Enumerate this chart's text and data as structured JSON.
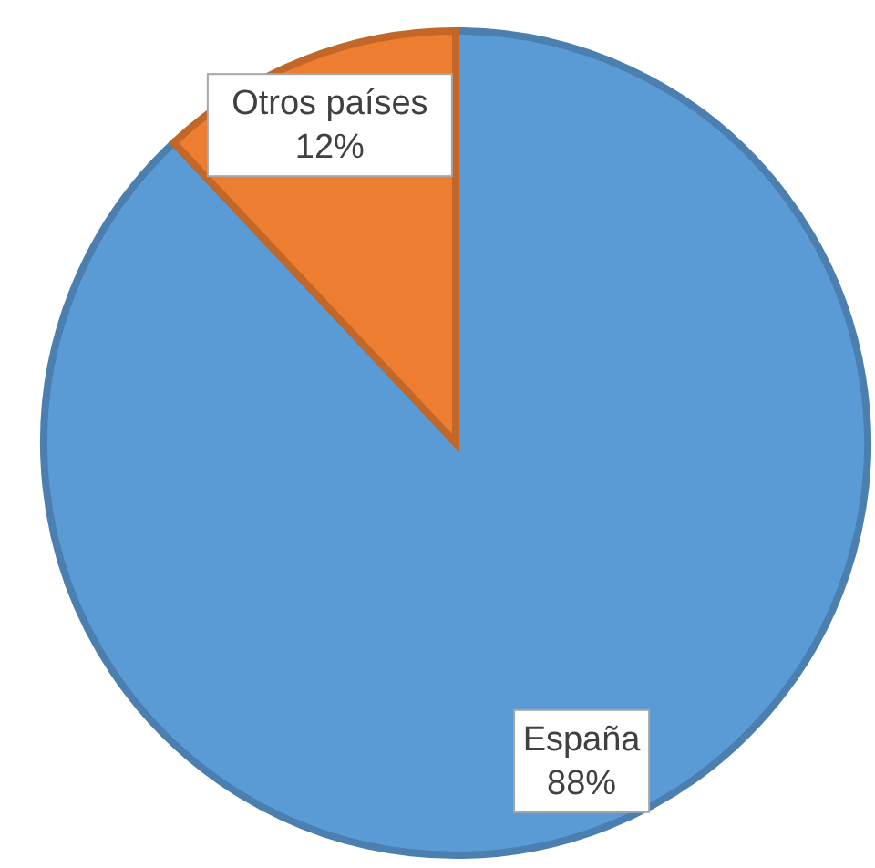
{
  "chart_data": {
    "type": "pie",
    "categories": [
      "España",
      "Otros países"
    ],
    "values": [
      88,
      12
    ],
    "colors": [
      "#5b9bd5",
      "#ed7d31"
    ],
    "value_labels": [
      "88%",
      "12%"
    ]
  }
}
